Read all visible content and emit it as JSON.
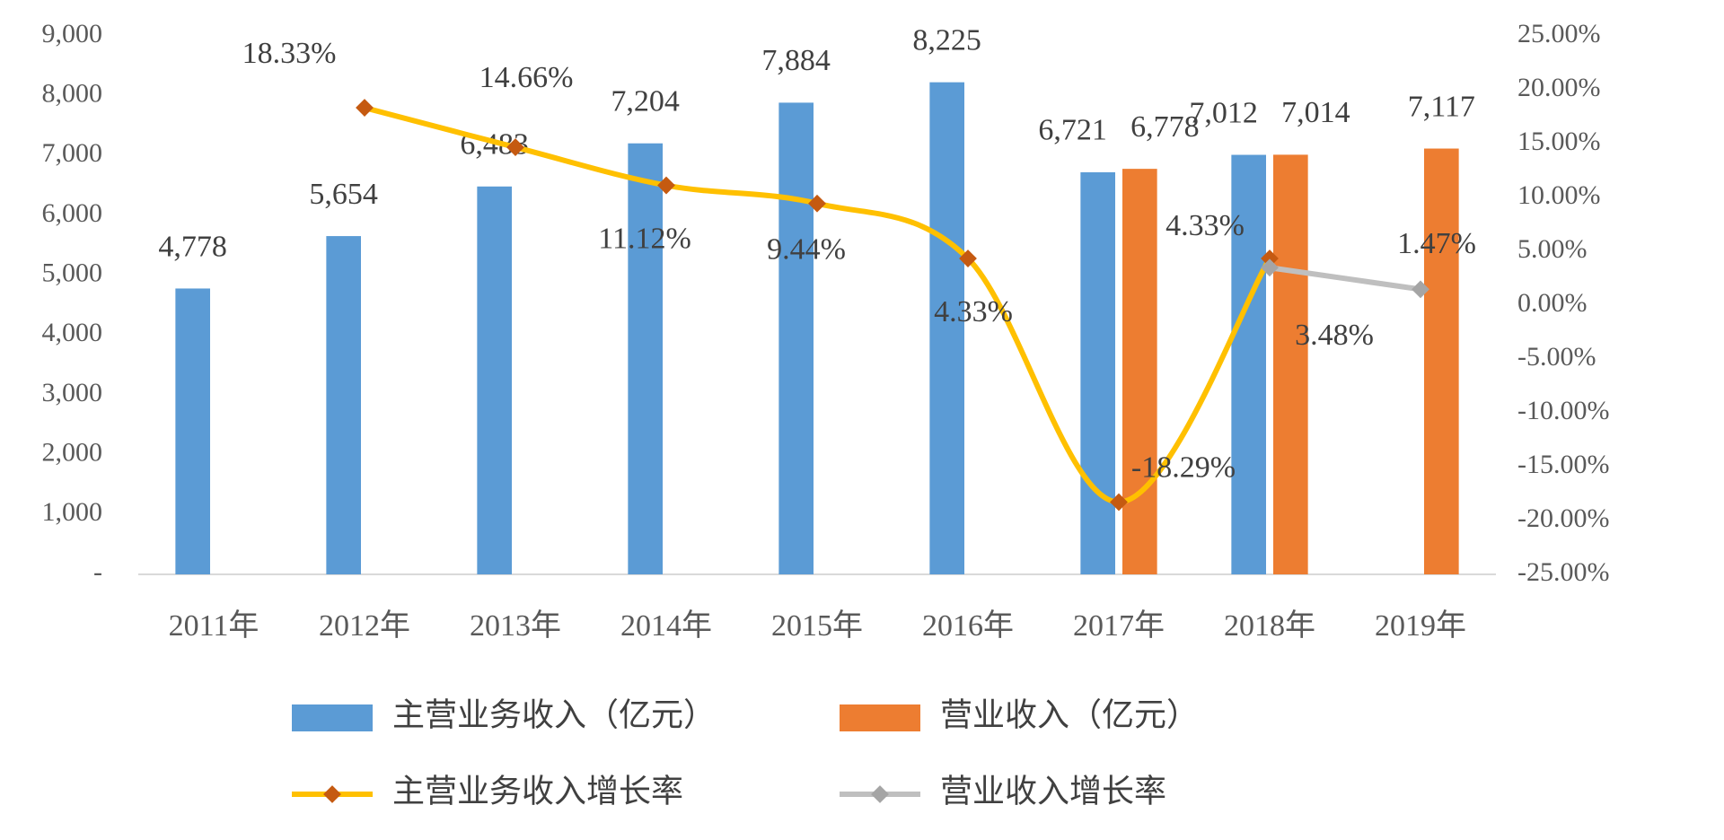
{
  "chart_data": {
    "type": "bar",
    "categories": [
      "2011年",
      "2012年",
      "2013年",
      "2014年",
      "2015年",
      "2016年",
      "2017年",
      "2018年",
      "2019年"
    ],
    "series": [
      {
        "name": "主营业务收入（亿元）",
        "type": "bar",
        "color": "#5b9bd5",
        "values": [
          4778,
          5654,
          6483,
          7204,
          7884,
          8225,
          6721,
          7012,
          null
        ],
        "value_labels": [
          "4,778",
          "5,654",
          "6,483",
          "7,204",
          "7,884",
          "8,225",
          "6,721",
          "7,012",
          null
        ]
      },
      {
        "name": "营业收入（亿元）",
        "type": "bar",
        "color": "#ed7d31",
        "values": [
          null,
          null,
          null,
          null,
          null,
          null,
          6778,
          7014,
          7117
        ],
        "value_labels": [
          null,
          null,
          null,
          null,
          null,
          null,
          "6,778",
          "7,014",
          "7,117"
        ]
      },
      {
        "name": "主营业务收入增长率",
        "type": "line",
        "axis": "y2",
        "color": "#ffc000",
        "marker_color": "#c55a11",
        "values": [
          null,
          18.33,
          14.66,
          11.12,
          9.44,
          4.33,
          -18.29,
          4.33,
          null
        ],
        "value_labels": [
          null,
          "18.33%",
          "14.66%",
          "11.12%",
          "9.44%",
          "4.33%",
          "-18.29%",
          "4.33%",
          null
        ]
      },
      {
        "name": "营业收入增长率",
        "type": "line",
        "axis": "y2",
        "color": "#bfbfbf",
        "marker_color": "#a5a5a5",
        "values": [
          null,
          null,
          null,
          null,
          null,
          null,
          null,
          3.48,
          1.47
        ],
        "value_labels": [
          null,
          null,
          null,
          null,
          null,
          null,
          null,
          "3.48%",
          "1.47%"
        ]
      }
    ],
    "ylim": [
      0,
      9000
    ],
    "yticks": [
      {
        "value": 0,
        "label": "-"
      },
      {
        "value": 1000,
        "label": "1,000"
      },
      {
        "value": 2000,
        "label": "2,000"
      },
      {
        "value": 3000,
        "label": "3,000"
      },
      {
        "value": 4000,
        "label": "4,000"
      },
      {
        "value": 5000,
        "label": "5,000"
      },
      {
        "value": 6000,
        "label": "6,000"
      },
      {
        "value": 7000,
        "label": "7,000"
      },
      {
        "value": 8000,
        "label": "8,000"
      },
      {
        "value": 9000,
        "label": "9,000"
      }
    ],
    "y2lim": [
      -25,
      25
    ],
    "y2ticks": [
      {
        "value": -25,
        "label": "-25.00%"
      },
      {
        "value": -20,
        "label": "-20.00%"
      },
      {
        "value": -15,
        "label": "-15.00%"
      },
      {
        "value": -10,
        "label": "-10.00%"
      },
      {
        "value": -5,
        "label": "-5.00%"
      },
      {
        "value": 0,
        "label": "0.00%"
      },
      {
        "value": 5,
        "label": "5.00%"
      },
      {
        "value": 10,
        "label": "10.00%"
      },
      {
        "value": 15,
        "label": "15.00%"
      },
      {
        "value": 20,
        "label": "20.00%"
      },
      {
        "value": 25,
        "label": "25.00%"
      }
    ],
    "grid": false,
    "legend": "bottom"
  }
}
